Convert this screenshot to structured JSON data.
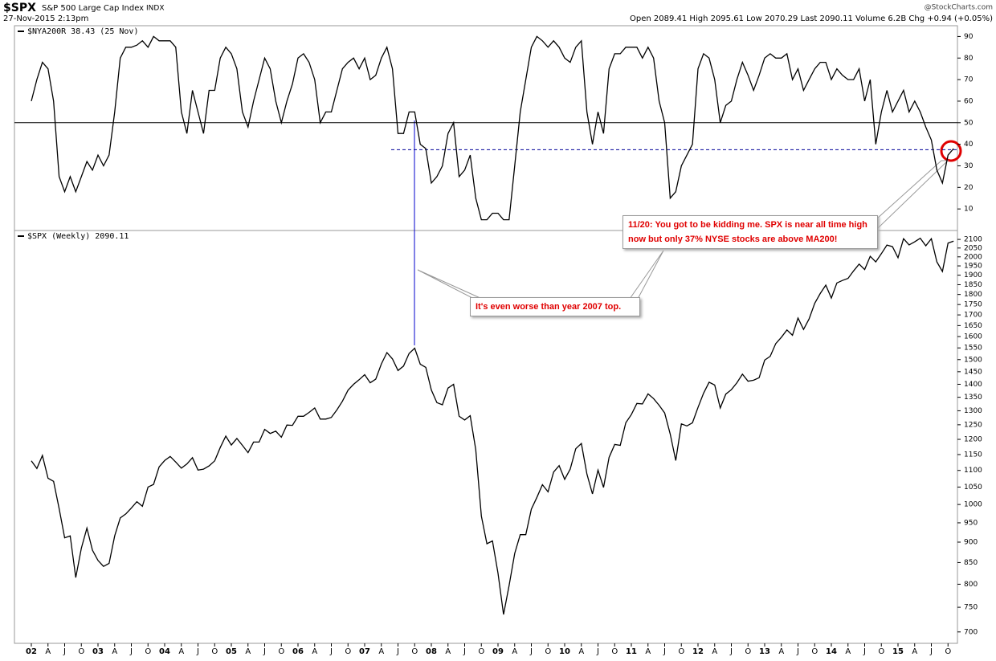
{
  "header": {
    "symbol": "$SPX",
    "name": "S&P 500 Large Cap Index",
    "exchange": "INDX",
    "date": "27-Nov-2015 2:13pm",
    "quote": "Open 2089.41 High 2095.61 Low 2070.29 Last 2090.11 Volume 6.2B Chg +0.94 (+0.05%)",
    "source": "@StockCharts.com"
  },
  "annotations": [
    "11/20: You got to be kidding me. SPX is near all time high now but only 37% NYSE stocks are above MA200!",
    "It's even worse than year 2007 top."
  ],
  "chart_data": [
    {
      "type": "line",
      "legend": "$NYA200R 38.43 (25 Nov)",
      "color": "#000000",
      "ylim": [
        0,
        95
      ],
      "yticks": [
        10,
        20,
        30,
        40,
        50,
        60,
        70,
        80,
        90
      ],
      "hlines": [
        {
          "value": 50,
          "style": "solid"
        },
        {
          "value": 37.5,
          "style": "dashed"
        }
      ],
      "values": [
        60,
        70,
        78,
        75,
        60,
        25,
        18,
        25,
        18,
        25,
        32,
        28,
        35,
        30,
        35,
        55,
        80,
        85,
        85,
        86,
        88,
        85,
        90,
        88,
        88,
        88,
        85,
        55,
        45,
        65,
        55,
        45,
        65,
        65,
        80,
        85,
        82,
        75,
        55,
        48,
        60,
        70,
        80,
        75,
        60,
        50,
        60,
        68,
        80,
        82,
        78,
        70,
        50,
        55,
        55,
        65,
        75,
        78,
        80,
        75,
        80,
        70,
        72,
        80,
        85,
        75,
        45,
        45,
        55,
        55,
        40,
        38,
        22,
        25,
        30,
        45,
        50,
        25,
        28,
        35,
        15,
        5,
        5,
        8,
        8,
        5,
        5,
        30,
        55,
        70,
        85,
        90,
        88,
        85,
        88,
        85,
        80,
        78,
        85,
        88,
        55,
        40,
        55,
        45,
        75,
        82,
        82,
        85,
        85,
        85,
        80,
        85,
        80,
        60,
        50,
        15,
        18,
        30,
        35,
        40,
        75,
        82,
        80,
        70,
        50,
        58,
        60,
        70,
        78,
        72,
        65,
        72,
        80,
        82,
        80,
        80,
        82,
        70,
        75,
        65,
        70,
        75,
        78,
        78,
        70,
        75,
        72,
        70,
        70,
        75,
        60,
        70,
        40,
        55,
        65,
        55,
        60,
        65,
        55,
        60,
        55,
        48,
        42,
        28,
        22,
        35,
        38
      ]
    },
    {
      "type": "line",
      "legend": "$SPX (Weekly) 2090.11",
      "color": "#000000",
      "log": true,
      "ylim": [
        678,
        2153
      ],
      "yticks": [
        700,
        750,
        800,
        850,
        900,
        950,
        1000,
        1050,
        1100,
        1150,
        1200,
        1250,
        1300,
        1350,
        1400,
        1450,
        1500,
        1550,
        1600,
        1650,
        1700,
        1750,
        1800,
        1850,
        1900,
        1950,
        2000,
        2050,
        2100
      ],
      "categories": [
        "02",
        null,
        null,
        "A",
        null,
        null,
        "J",
        null,
        null,
        "O",
        null,
        null,
        "03",
        null,
        null,
        "A",
        null,
        null,
        "J",
        null,
        null,
        "O",
        null,
        null,
        "04",
        null,
        null,
        "A",
        null,
        null,
        "J",
        null,
        null,
        "O",
        null,
        null,
        "05",
        null,
        null,
        "A",
        null,
        null,
        "J",
        null,
        null,
        "O",
        null,
        null,
        "06",
        null,
        null,
        "A",
        null,
        null,
        "J",
        null,
        null,
        "O",
        null,
        null,
        "07",
        null,
        null,
        "A",
        null,
        null,
        "J",
        null,
        null,
        "O",
        null,
        null,
        "08",
        null,
        null,
        "A",
        null,
        null,
        "J",
        null,
        null,
        "O",
        null,
        null,
        "09",
        null,
        null,
        "A",
        null,
        null,
        "J",
        null,
        null,
        "O",
        null,
        null,
        "10",
        null,
        null,
        "A",
        null,
        null,
        "J",
        null,
        null,
        "O",
        null,
        null,
        "11",
        null,
        null,
        "A",
        null,
        null,
        "J",
        null,
        null,
        "O",
        null,
        null,
        "12",
        null,
        null,
        "A",
        null,
        null,
        "J",
        null,
        null,
        "O",
        null,
        null,
        "13",
        null,
        null,
        "A",
        null,
        null,
        "J",
        null,
        null,
        "O",
        null,
        null,
        "14",
        null,
        null,
        "A",
        null,
        null,
        "J",
        null,
        null,
        "O",
        null,
        null,
        "15",
        null,
        null,
        "A",
        null,
        null,
        "J",
        null,
        null,
        "O",
        null
      ],
      "values": [
        1130,
        1106,
        1147,
        1076,
        1067,
        989,
        911,
        916,
        815,
        885,
        936,
        880,
        855,
        841,
        848,
        916,
        963,
        974,
        990,
        1008,
        995,
        1050,
        1058,
        1111,
        1131,
        1144,
        1126,
        1107,
        1120,
        1140,
        1101,
        1104,
        1114,
        1130,
        1173,
        1211,
        1181,
        1203,
        1180,
        1156,
        1191,
        1191,
        1234,
        1220,
        1228,
        1207,
        1249,
        1248,
        1280,
        1280,
        1294,
        1310,
        1270,
        1270,
        1276,
        1303,
        1335,
        1377,
        1400,
        1418,
        1438,
        1406,
        1420,
        1482,
        1530,
        1503,
        1455,
        1473,
        1526,
        1549,
        1481,
        1468,
        1378,
        1330,
        1322,
        1385,
        1400,
        1280,
        1267,
        1282,
        1166,
        968,
        896,
        903,
        825,
        735,
        797,
        872,
        919,
        919,
        987,
        1020,
        1057,
        1036,
        1095,
        1115,
        1073,
        1104,
        1169,
        1186,
        1089,
        1030,
        1101,
        1049,
        1141,
        1183,
        1180,
        1257,
        1286,
        1327,
        1325,
        1363,
        1345,
        1320,
        1292,
        1218,
        1131,
        1253,
        1246,
        1257,
        1312,
        1365,
        1408,
        1397,
        1310,
        1362,
        1379,
        1406,
        1440,
        1412,
        1416,
        1426,
        1498,
        1514,
        1569,
        1597,
        1630,
        1606,
        1685,
        1632,
        1681,
        1756,
        1805,
        1848,
        1782,
        1859,
        1872,
        1883,
        1923,
        1960,
        1930,
        2003,
        1972,
        2018,
        2067,
        2058,
        1995,
        2104,
        2068,
        2086,
        2107,
        2063,
        2104,
        1972,
        1920,
        2079,
        2090
      ]
    }
  ]
}
